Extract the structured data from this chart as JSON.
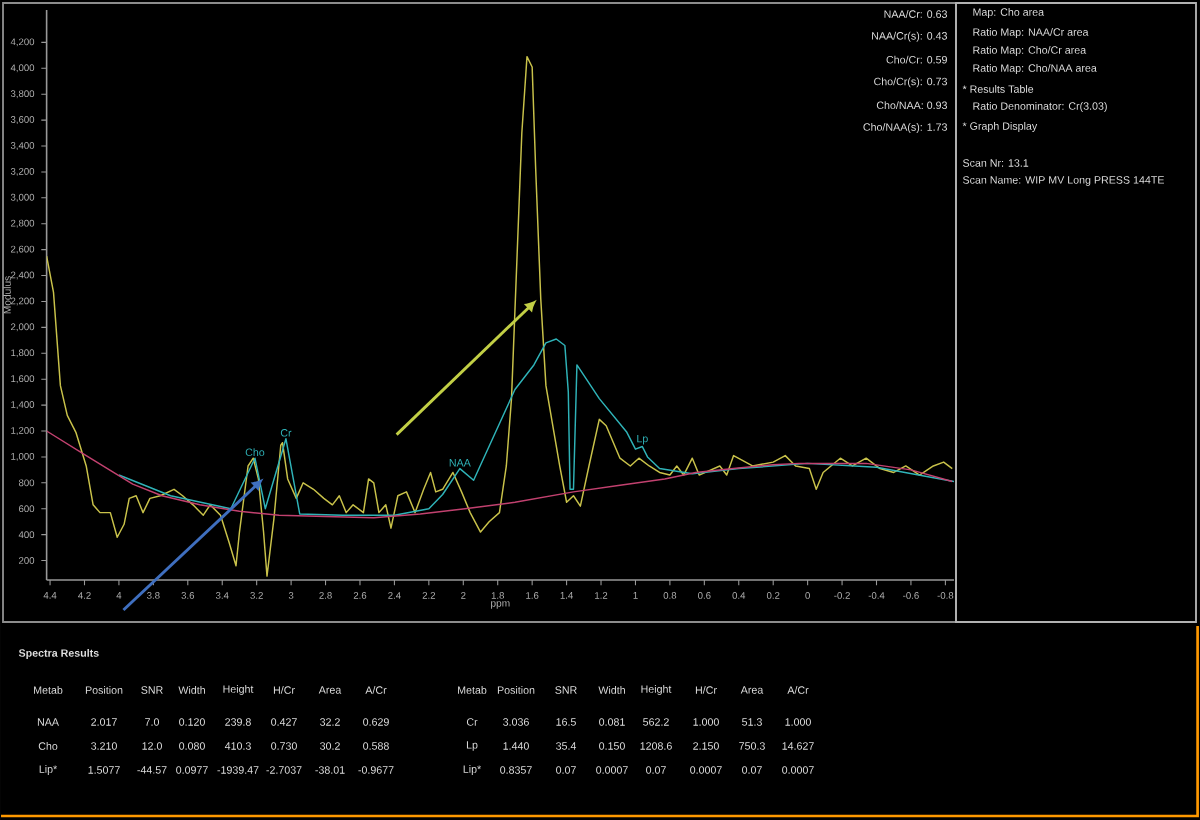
{
  "chart_data": {
    "type": "line",
    "xlabel": "ppm",
    "ylabel": "Modulus",
    "xlim": [
      4.42,
      -0.85
    ],
    "ylim": [
      50,
      4450
    ],
    "xticks": [
      4.4,
      4.2,
      4,
      3.8,
      3.6,
      3.4,
      3.2,
      3,
      2.8,
      2.6,
      2.4,
      2.2,
      2,
      1.8,
      1.6,
      1.4,
      1.2,
      1,
      0.8,
      0.6,
      0.4,
      0.2,
      0,
      -0.2,
      -0.4,
      -0.6,
      -0.8
    ],
    "yticks": [
      200,
      400,
      600,
      800,
      {
        "value": 1000,
        "label": "1,000"
      },
      {
        "value": 1200,
        "label": "1,200"
      },
      {
        "value": 1400,
        "label": "1,400"
      },
      {
        "value": 1600,
        "label": "1,600"
      },
      {
        "value": 1800,
        "label": "1,800"
      },
      {
        "value": 2000,
        "label": "2,000"
      },
      {
        "value": 2200,
        "label": "2,200"
      },
      {
        "value": 2400,
        "label": "2,400"
      },
      {
        "value": 2600,
        "label": "2,600"
      },
      {
        "value": 2800,
        "label": "2,800"
      },
      {
        "value": 3000,
        "label": "3,000"
      },
      {
        "value": 3200,
        "label": "3,200"
      },
      {
        "value": 3400,
        "label": "3,400"
      },
      {
        "value": 3600,
        "label": "3,600"
      },
      {
        "value": 3800,
        "label": "3,800"
      },
      {
        "value": 4000,
        "label": "4,000"
      },
      {
        "value": 4200,
        "label": "4,200"
      }
    ],
    "series": [
      {
        "color": "#c9c24a",
        "x": [
          4.42,
          4.38,
          4.34,
          4.3,
          4.25,
          4.19,
          4.15,
          4.11,
          4.05,
          4.01,
          3.97,
          3.94,
          3.9,
          3.86,
          3.82,
          3.76,
          3.68,
          3.63,
          3.57,
          3.51,
          3.47,
          3.41,
          3.36,
          3.32,
          3.3,
          3.25,
          3.22,
          3.19,
          3.16,
          3.14,
          3.1,
          3.06,
          3.05,
          3.02,
          2.97,
          2.93,
          2.87,
          2.81,
          2.76,
          2.72,
          2.68,
          2.64,
          2.58,
          2.55,
          2.52,
          2.49,
          2.45,
          2.42,
          2.38,
          2.33,
          2.28,
          2.23,
          2.19,
          2.16,
          2.12,
          2.06,
          2.01,
          1.96,
          1.9,
          1.85,
          1.79,
          1.75,
          1.72,
          1.69,
          1.66,
          1.63,
          1.6,
          1.58,
          1.55,
          1.52,
          1.48,
          1.44,
          1.4,
          1.36,
          1.32,
          1.27,
          1.21,
          1.17,
          1.09,
          1.03,
          0.98,
          0.92,
          0.86,
          0.8,
          0.76,
          0.72,
          0.67,
          0.63,
          0.51,
          0.47,
          0.43,
          0.32,
          0.2,
          0.13,
          0.07,
          -0.01,
          -0.05,
          -0.09,
          -0.19,
          -0.26,
          -0.34,
          -0.42,
          -0.5,
          -0.57,
          -0.65,
          -0.73,
          -0.79,
          -0.84
        ],
        "values": [
          2550,
          2270,
          1550,
          1320,
          1190,
          930,
          630,
          570,
          570,
          380,
          480,
          680,
          700,
          570,
          680,
          700,
          750,
          700,
          630,
          550,
          630,
          550,
          340,
          160,
          420,
          930,
          990,
          830,
          420,
          80,
          520,
          1090,
          1110,
          830,
          680,
          800,
          750,
          680,
          630,
          700,
          570,
          630,
          570,
          830,
          800,
          570,
          630,
          450,
          700,
          730,
          570,
          750,
          880,
          730,
          750,
          880,
          730,
          570,
          420,
          500,
          570,
          930,
          1450,
          2470,
          3500,
          4090,
          4010,
          3240,
          2220,
          1550,
          1240,
          930,
          650,
          700,
          620,
          930,
          1290,
          1240,
          990,
          930,
          990,
          930,
          880,
          860,
          930,
          860,
          990,
          860,
          930,
          860,
          1010,
          930,
          960,
          1010,
          930,
          910,
          750,
          880,
          990,
          930,
          990,
          910,
          880,
          930,
          860,
          930,
          960,
          910
        ]
      },
      {
        "color": "#2fb3b8",
        "x": [
          4.0,
          3.7,
          3.35,
          3.21,
          3.15,
          3.03,
          2.95,
          2.7,
          2.4,
          2.2,
          2.12,
          2.02,
          1.94,
          1.83,
          1.7,
          1.59,
          1.52,
          1.46,
          1.41,
          1.39,
          1.38,
          1.36,
          1.34,
          1.21,
          1.05,
          1.0,
          0.96,
          0.93,
          0.86,
          0.67,
          0.4,
          0.0,
          -0.4,
          -0.85
        ],
        "values": [
          860,
          700,
          600,
          990,
          600,
          1140,
          560,
          550,
          550,
          600,
          710,
          910,
          820,
          1140,
          1520,
          1710,
          1880,
          1910,
          1860,
          1500,
          750,
          750,
          1710,
          1450,
          1190,
          1060,
          1080,
          1000,
          910,
          870,
          910,
          950,
          920,
          810
        ]
      },
      {
        "color": "#c2416f",
        "x": [
          4.42,
          4.19,
          3.92,
          3.75,
          3.53,
          3.3,
          3.07,
          2.8,
          2.52,
          2.25,
          1.99,
          1.7,
          1.36,
          1.1,
          0.83,
          0.65,
          0.43,
          0.2,
          0.05,
          -0.1,
          -0.34,
          -0.6,
          -0.84
        ],
        "values": [
          1200,
          1010,
          790,
          700,
          630,
          580,
          550,
          540,
          530,
          560,
          600,
          650,
          730,
          780,
          830,
          880,
          910,
          940,
          950,
          950,
          950,
          900,
          810
        ]
      }
    ],
    "annotations": [
      "NAA/Cr: 0.63",
      "NAA/Cr(s): 0.43",
      "Cho/Cr: 0.59",
      "Cho/Cr(s): 0.73",
      "Cho/NAA: 0.93",
      "Cho/NAA(s): 1.73",
      "Map: Cho area",
      "Ratio Map: NAA/Cr area",
      "Ratio Map: Cho/Cr area",
      "Ratio Map: Cho/NAA area",
      "* Results Table",
      "Ratio Denominator: Cr(3.03)",
      "* Graph Display",
      "Scan Nr: 13.1",
      "Scan Name: WIP MV Long PRESS 144TE",
      "Spectra Results",
      "Metab",
      "Position",
      "SNR",
      "Width",
      "Height",
      "H/Cr",
      "Area",
      "A/Cr",
      "NAA",
      "2.017",
      "7.0",
      "0.120",
      "239.8",
      "0.427",
      "32.2",
      "0.629",
      "Cho",
      "3.210",
      "12.0",
      "0.080",
      "410.3",
      "0.730",
      "30.2",
      "0.588",
      "Lip*",
      "1.5077",
      "-44.57",
      "0.0977",
      "-1939.47",
      "-2.7037",
      "-38.01",
      "-0.9677",
      "Metab",
      "Position",
      "SNR",
      "Width",
      "Height",
      "H/Cr",
      "Area",
      "A/Cr",
      "Cr",
      "3.036",
      "16.5",
      "0.081",
      "562.2",
      "1.000",
      "51.3",
      "1.000",
      "Lp",
      "1.440",
      "35.4",
      "0.150",
      "1208.6",
      "2.150",
      "750.3",
      "14.627",
      "Lip*",
      "0.8357",
      "0.07",
      "0.0007",
      "0.07",
      "0.0007",
      "0.07",
      "0.0007",
      {
        "text": "Cho",
        "x": 3.21,
        "y": 990
      },
      {
        "text": "Cr",
        "x": 3.03,
        "y": 1140
      },
      {
        "text": "NAA",
        "x": 2.02,
        "y": 910
      },
      {
        "text": "Lp",
        "x": 0.96,
        "y": 1080
      }
    ]
  }
}
